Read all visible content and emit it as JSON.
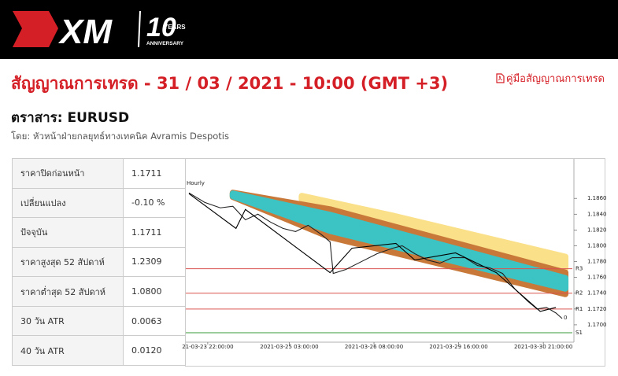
{
  "header": {
    "logo": "XM",
    "anniversary_number": "10",
    "anniversary_years": "YEARS",
    "anniversary_word": "ANNIVERSARY"
  },
  "title": "สัญญาณการเทรด - 31 / 03 / 2021 - 10:00 (GMT +3)",
  "guide_link": "คู่มือสัญญาณการเทรด",
  "instrument": "ตราสาร: EURUSD",
  "author": "โดย: หัวหน้าฝ่ายกลยุทธ์ทางเทคนิค Avramis Despotis",
  "table": {
    "rows": [
      [
        "ราคาปิดก่อนหน้า",
        "1.1711"
      ],
      [
        "เปลี่ยนแปลง",
        "-0.10 %"
      ],
      [
        "ปัจจุบัน",
        "1.1711"
      ],
      [
        "ราคาสูงสุด 52 สัปดาห์",
        "1.2309"
      ],
      [
        "ราคาต่ำสุด 52 สัปดาห์",
        "1.0800"
      ],
      [
        "30 วัน ATR",
        "0.0063"
      ],
      [
        "40 วัน ATR",
        "0.0120"
      ]
    ]
  },
  "chart_data": {
    "type": "line",
    "title": "Hourly",
    "xlim": [
      -0.5,
      122.75
    ],
    "ylim": [
      1.1684,
      1.1902
    ],
    "xticks": [
      {
        "value": 6,
        "label": "21-03-23 22:00:00"
      },
      {
        "value": 32,
        "label": "2021-03-25 03:00:00"
      },
      {
        "value": 59,
        "label": "2021-03-26 08:00:00"
      },
      {
        "value": 86,
        "label": "2021-03-29 16:00:00"
      },
      {
        "value": 113,
        "label": "2021-03-30 21:00:00"
      }
    ],
    "yticks": [
      {
        "value": 1.186,
        "label": "1.1860"
      },
      {
        "value": 1.184,
        "label": "1.1840"
      },
      {
        "value": 1.182,
        "label": "1.1820"
      },
      {
        "value": 1.18,
        "label": "1.1800"
      },
      {
        "value": 1.178,
        "label": "1.1780"
      },
      {
        "value": 1.176,
        "label": "1.1760"
      },
      {
        "value": 1.174,
        "label": "1.1740"
      },
      {
        "value": 1.172,
        "label": "1.1720"
      },
      {
        "value": 1.17,
        "label": "1.1700"
      }
    ],
    "bands": [
      {
        "color": "#fbe08a",
        "x": [
          36,
          65,
          120
        ],
        "upper": [
          1.1863,
          1.1838,
          1.1786
        ],
        "lower": [
          1.1859,
          1.1811,
          1.1771
        ]
      },
      {
        "color": "#c8793a",
        "x": [
          14,
          45,
          120
        ],
        "upper": [
          1.1867,
          1.1846,
          1.1766
        ],
        "lower": [
          1.1862,
          1.1811,
          1.1739
        ]
      },
      {
        "color": "#3cc3c3",
        "x": [
          14,
          45,
          120
        ],
        "upper": [
          1.1866,
          1.1839,
          1.1759
        ],
        "lower": [
          1.1863,
          1.1819,
          1.1746
        ]
      }
    ],
    "levels": [
      {
        "label": "R3",
        "value": 1.1771,
        "color": "#d9534f"
      },
      {
        "label": "R2",
        "value": 1.174,
        "color": "#d9534f"
      },
      {
        "label": "R1",
        "value": 1.172,
        "color": "#d9534f"
      },
      {
        "label": "S1",
        "value": 1.169,
        "color": "#3a9a3a"
      }
    ],
    "series": [
      {
        "color": "#222222",
        "x": [
          0,
          5,
          10,
          14,
          18,
          22,
          26,
          30,
          34,
          38,
          42,
          45,
          46,
          50,
          55,
          60,
          65,
          68,
          72,
          76,
          80,
          84,
          88,
          92,
          96,
          100,
          104,
          108,
          111,
          114,
          117,
          119
        ],
        "values": [
          1.1867,
          1.1855,
          1.1848,
          1.185,
          1.1833,
          1.184,
          1.183,
          1.1822,
          1.1818,
          1.1826,
          1.1815,
          1.1805,
          1.1765,
          1.177,
          1.178,
          1.179,
          1.1797,
          1.18,
          1.179,
          1.1782,
          1.1778,
          1.1785,
          1.1785,
          1.1775,
          1.1772,
          1.1765,
          1.1745,
          1.173,
          1.172,
          1.1722,
          1.1715,
          1.1708
        ]
      },
      {
        "color": "#000000",
        "x": [
          0,
          15,
          18,
          45,
          52,
          66,
          72,
          85,
          98,
          112,
          117
        ],
        "values": [
          1.1866,
          1.1822,
          1.1846,
          1.1766,
          1.1797,
          1.1803,
          1.1782,
          1.1791,
          1.1766,
          1.1717,
          1.1722
        ]
      }
    ],
    "annotations": [
      {
        "text": "0",
        "x": 119.5,
        "y": 1.1709
      }
    ]
  }
}
